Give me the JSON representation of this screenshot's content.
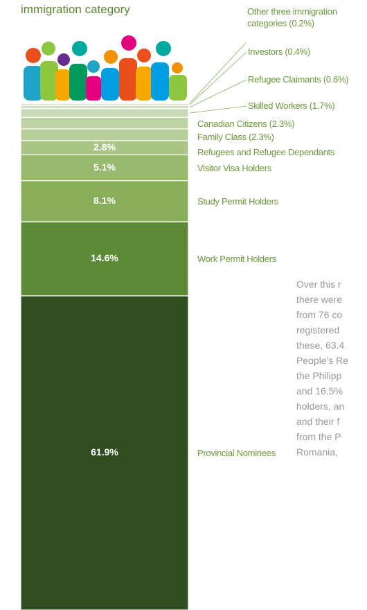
{
  "chart_data": {
    "type": "stacked_column",
    "title": "immigration category",
    "categories": [
      "Other three immigration categories (0.2%)",
      "Investors (0.4%)",
      "Refugee Claimants (0.6%)",
      "Skilled Workers (1.7%)",
      "Canadian Citizens (2.3%)",
      "Family Class (2.3%)",
      "Refugees and Refugee Dependants",
      "Visitor Visa Holders",
      "Study Permit Holders",
      "Work Permit Holders",
      "Provincial Nominees"
    ],
    "values": [
      0.2,
      0.4,
      0.6,
      1.7,
      2.3,
      2.3,
      2.8,
      5.1,
      8.1,
      14.6,
      61.9
    ],
    "value_labels": [
      null,
      null,
      null,
      null,
      null,
      null,
      "2.8%",
      "5.1%",
      "8.1%",
      "14.6%",
      "61.9%"
    ],
    "colors": [
      "#dfe9d3",
      "#d8e5ca",
      "#d2e1c2",
      "#c9dbb6",
      "#bfd4a5",
      "#b5cd98",
      "#a9c586",
      "#98ba6c",
      "#88ae5a",
      "#5d8a37",
      "#2f4e1f"
    ],
    "annotation": [
      "Over this r",
      "there were",
      "from 76 co",
      "registered",
      "these, 63.4",
      "People's Re",
      "the Philipp",
      "and 16.5%",
      "holders, an",
      "and their f",
      "from the P",
      "Romania,"
    ]
  }
}
